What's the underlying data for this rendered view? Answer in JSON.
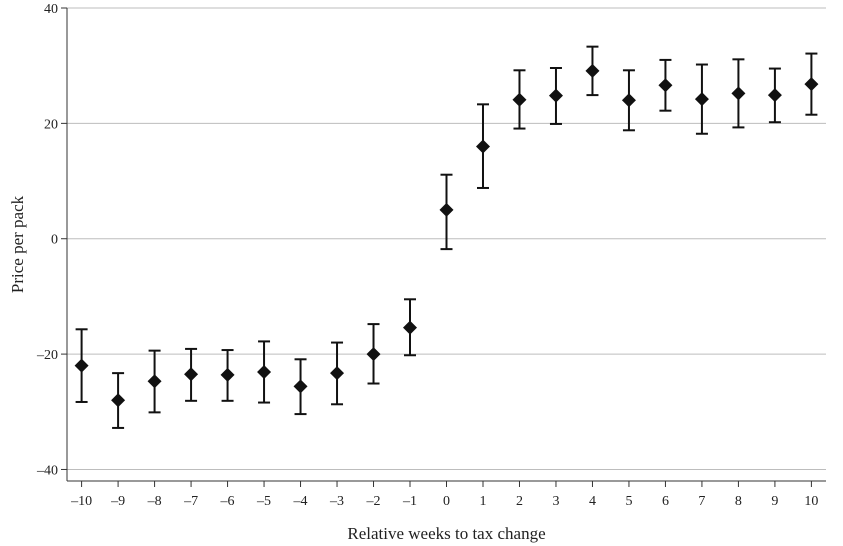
{
  "chart_data": {
    "type": "scatter",
    "title": "",
    "xlabel": "Relative weeks to tax change",
    "ylabel": "Price per pack",
    "xlim": [
      -10.4,
      10.4
    ],
    "ylim": [
      -42,
      40
    ],
    "grid": "horizontal",
    "marker": "diamond",
    "error_bars": true,
    "x_ticks": [
      -10,
      -9,
      -8,
      -7,
      -6,
      -5,
      -4,
      -3,
      -2,
      -1,
      0,
      1,
      2,
      3,
      4,
      5,
      6,
      7,
      8,
      9,
      10
    ],
    "x_tick_labels": [
      "–10",
      "–9",
      "–8",
      "–7",
      "–6",
      "–5",
      "–4",
      "–3",
      "–2",
      "–1",
      "0",
      "1",
      "2",
      "3",
      "4",
      "5",
      "6",
      "7",
      "8",
      "9",
      "10"
    ],
    "y_ticks": [
      -40,
      -20,
      0,
      20,
      40
    ],
    "y_tick_labels": [
      "–40",
      "–20",
      "0",
      "20",
      "40"
    ],
    "points": [
      {
        "x": -10,
        "y": -22.0,
        "lower": -28.3,
        "upper": -15.7
      },
      {
        "x": -9,
        "y": -28.0,
        "lower": -32.8,
        "upper": -23.3
      },
      {
        "x": -8,
        "y": -24.7,
        "lower": -30.1,
        "upper": -19.4
      },
      {
        "x": -7,
        "y": -23.5,
        "lower": -28.1,
        "upper": -19.1
      },
      {
        "x": -6,
        "y": -23.6,
        "lower": -28.1,
        "upper": -19.3
      },
      {
        "x": -5,
        "y": -23.1,
        "lower": -28.4,
        "upper": -17.8
      },
      {
        "x": -4,
        "y": -25.6,
        "lower": -30.4,
        "upper": -20.9
      },
      {
        "x": -3,
        "y": -23.3,
        "lower": -28.7,
        "upper": -18.0
      },
      {
        "x": -2,
        "y": -20.0,
        "lower": -25.1,
        "upper": -14.8
      },
      {
        "x": -1,
        "y": -15.4,
        "lower": -20.2,
        "upper": -10.5
      },
      {
        "x": 0,
        "y": 5.0,
        "lower": -1.8,
        "upper": 11.1
      },
      {
        "x": 1,
        "y": 16.0,
        "lower": 8.8,
        "upper": 23.3
      },
      {
        "x": 2,
        "y": 24.1,
        "lower": 19.1,
        "upper": 29.2
      },
      {
        "x": 3,
        "y": 24.8,
        "lower": 19.9,
        "upper": 29.6
      },
      {
        "x": 4,
        "y": 29.1,
        "lower": 24.9,
        "upper": 33.3
      },
      {
        "x": 5,
        "y": 24.0,
        "lower": 18.8,
        "upper": 29.2
      },
      {
        "x": 6,
        "y": 26.6,
        "lower": 22.2,
        "upper": 31.0
      },
      {
        "x": 7,
        "y": 24.2,
        "lower": 18.2,
        "upper": 30.2
      },
      {
        "x": 8,
        "y": 25.2,
        "lower": 19.3,
        "upper": 31.1
      },
      {
        "x": 9,
        "y": 24.9,
        "lower": 20.2,
        "upper": 29.5
      },
      {
        "x": 10,
        "y": 26.8,
        "lower": 21.5,
        "upper": 32.1
      }
    ]
  }
}
